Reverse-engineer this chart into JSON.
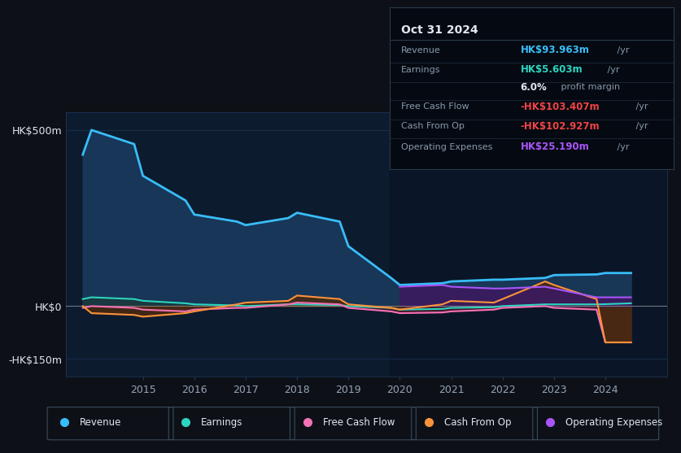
{
  "bg_color": "#0d1117",
  "plot_bg_color": "#0d1b2e",
  "years": [
    2013.83,
    2014.0,
    2014.83,
    2015.0,
    2015.83,
    2016.0,
    2016.83,
    2017.0,
    2017.83,
    2018.0,
    2018.83,
    2019.0,
    2019.83,
    2020.0,
    2020.83,
    2021.0,
    2021.83,
    2022.0,
    2022.83,
    2023.0,
    2023.83,
    2024.0,
    2024.5
  ],
  "revenue": [
    430,
    500,
    460,
    370,
    300,
    260,
    240,
    230,
    250,
    265,
    240,
    170,
    80,
    60,
    65,
    70,
    75,
    75,
    80,
    88,
    90,
    94,
    94
  ],
  "earnings": [
    20,
    25,
    20,
    15,
    8,
    5,
    2,
    0,
    5,
    5,
    3,
    0,
    -5,
    -10,
    -8,
    -5,
    -3,
    0,
    5,
    5,
    5,
    5.6,
    8
  ],
  "free_cash_flow": [
    -5,
    0,
    -5,
    -10,
    -15,
    -10,
    -5,
    -5,
    5,
    10,
    5,
    -5,
    -15,
    -20,
    -18,
    -15,
    -10,
    -5,
    0,
    -5,
    -10,
    -103,
    -103
  ],
  "cash_from_op": [
    0,
    -20,
    -25,
    -30,
    -20,
    -15,
    5,
    10,
    15,
    30,
    20,
    5,
    -5,
    -10,
    5,
    15,
    10,
    20,
    70,
    60,
    20,
    -103,
    -103
  ],
  "op_expenses": [
    null,
    null,
    null,
    null,
    null,
    null,
    null,
    null,
    null,
    null,
    null,
    null,
    null,
    55,
    60,
    55,
    50,
    50,
    55,
    50,
    25,
    25,
    25
  ],
  "revenue_color": "#38bdf8",
  "revenue_fill": "#1a3a5c",
  "earnings_color": "#2dd4bf",
  "earnings_fill": "#1a3a35",
  "fcf_color": "#f472b6",
  "fcf_fill": "#4a1a2a",
  "cashop_color": "#fb923c",
  "cashop_fill": "#4a2a10",
  "opex_color": "#a855f7",
  "opex_fill": "#3b1a5f",
  "grid_color": "#1e3a5f",
  "text_color": "#94a3b8",
  "white_color": "#e2e8f0",
  "info_box": {
    "title": "Oct 31 2024",
    "rows": [
      {
        "label": "Revenue",
        "value": "HK$93.963m",
        "suffix": " /yr",
        "value_color": "#38bdf8"
      },
      {
        "label": "Earnings",
        "value": "HK$5.603m",
        "suffix": " /yr",
        "value_color": "#2dd4bf"
      },
      {
        "label": "",
        "value": "6.0%",
        "suffix": " profit margin",
        "value_color": "#e2e8f0",
        "bold": true
      },
      {
        "label": "Free Cash Flow",
        "value": "-HK$103.407m",
        "suffix": " /yr",
        "value_color": "#ef4444"
      },
      {
        "label": "Cash From Op",
        "value": "-HK$102.927m",
        "suffix": " /yr",
        "value_color": "#ef4444"
      },
      {
        "label": "Operating Expenses",
        "value": "HK$25.190m",
        "suffix": " /yr",
        "value_color": "#a855f7"
      }
    ]
  },
  "legend": [
    {
      "label": "Revenue",
      "color": "#38bdf8"
    },
    {
      "label": "Earnings",
      "color": "#2dd4bf"
    },
    {
      "label": "Free Cash Flow",
      "color": "#f472b6"
    },
    {
      "label": "Cash From Op",
      "color": "#fb923c"
    },
    {
      "label": "Operating Expenses",
      "color": "#a855f7"
    }
  ],
  "xlim": [
    2013.5,
    2025.2
  ],
  "ylim": [
    -200,
    550
  ],
  "xticks": [
    2015,
    2016,
    2017,
    2018,
    2019,
    2020,
    2021,
    2022,
    2023,
    2024
  ],
  "ytick_vals": [
    500,
    0,
    -150
  ],
  "ytick_labels": [
    "HK$500m",
    "HK$0",
    "-HK$150m"
  ]
}
